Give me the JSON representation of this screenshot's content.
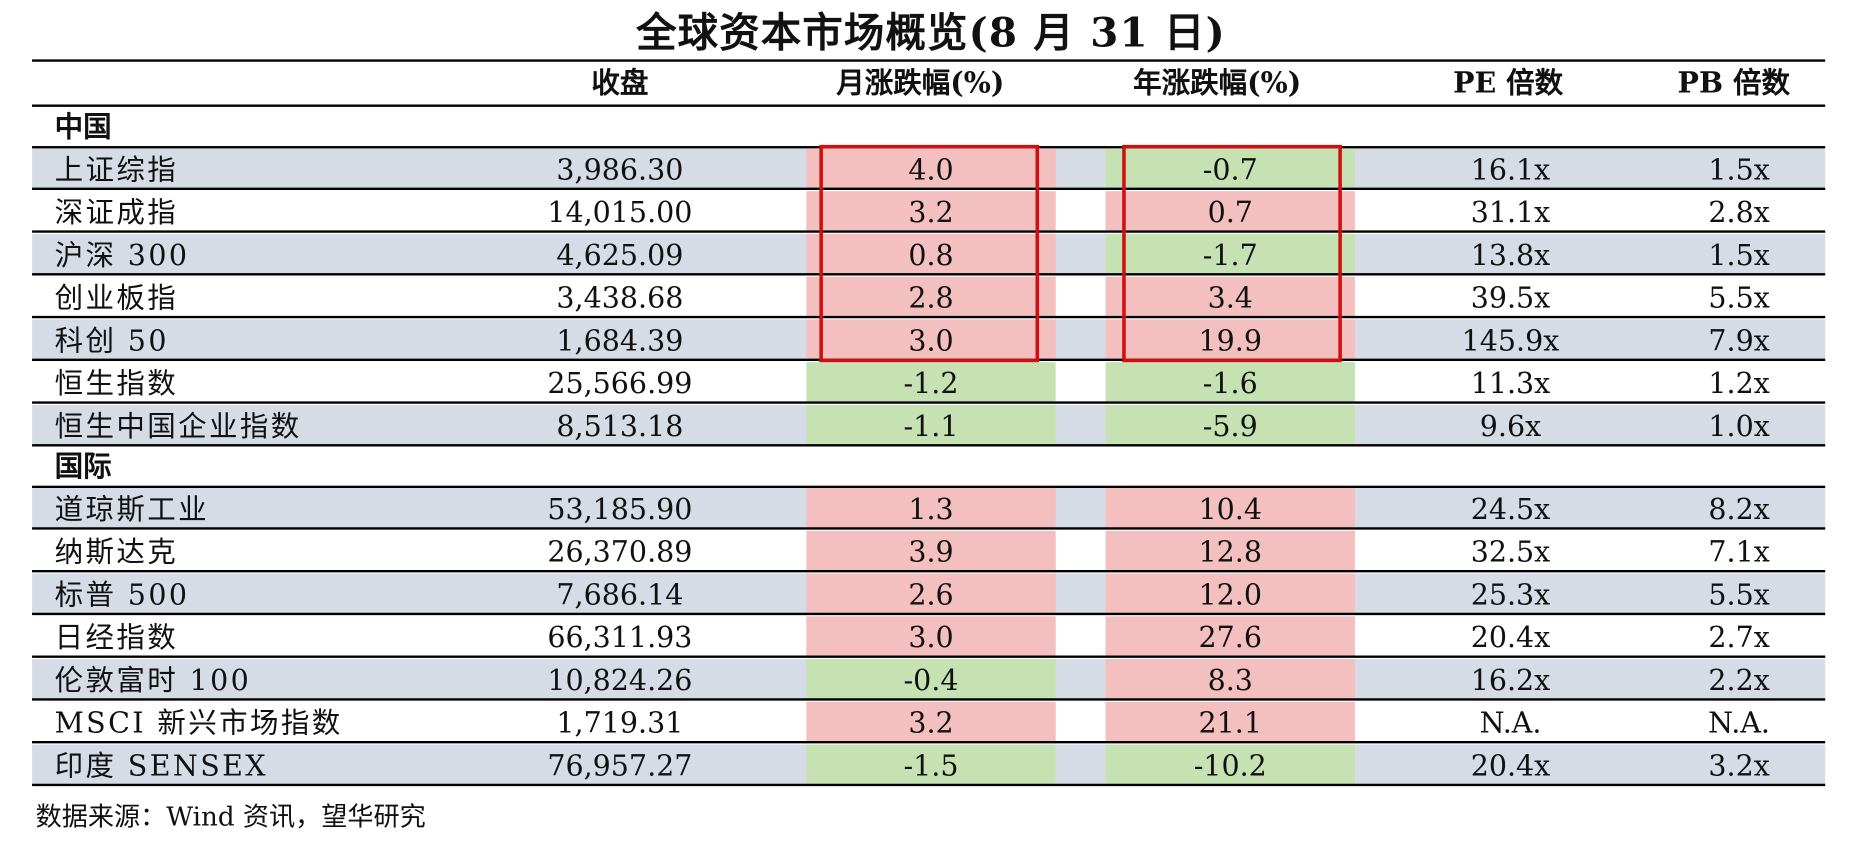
{
  "title": "全球资本市场概览(8 月 31 日)",
  "headers": {
    "close": "收盘",
    "month_change": "月涨跌幅(%)",
    "year_change": "年涨跌幅(%)",
    "pe": "PE 倍数",
    "pb": "PB 倍数"
  },
  "colors": {
    "positive_fill": "#f4bfbf",
    "negative_fill": "#c6e2b3",
    "row_shade": "#d6dce5",
    "highlight_box": "#d01010"
  },
  "sections": [
    {
      "label": "中国",
      "rows": [
        {
          "name": "上证综指",
          "close": "3,986.30",
          "month": "4.0",
          "year": "-0.7",
          "pe": "16.1x",
          "pb": "1.5x"
        },
        {
          "name": "深证成指",
          "close": "14,015.00",
          "month": "3.2",
          "year": "0.7",
          "pe": "31.1x",
          "pb": "2.8x"
        },
        {
          "name": "沪深 300",
          "close": "4,625.09",
          "month": "0.8",
          "year": "-1.7",
          "pe": "13.8x",
          "pb": "1.5x"
        },
        {
          "name": "创业板指",
          "close": "3,438.68",
          "month": "2.8",
          "year": "3.4",
          "pe": "39.5x",
          "pb": "5.5x"
        },
        {
          "name": "科创 50",
          "close": "1,684.39",
          "month": "3.0",
          "year": "19.9",
          "pe": "145.9x",
          "pb": "7.9x"
        },
        {
          "name": "恒生指数",
          "close": "25,566.99",
          "month": "-1.2",
          "year": "-1.6",
          "pe": "11.3x",
          "pb": "1.2x"
        },
        {
          "name": "恒生中国企业指数",
          "close": "8,513.18",
          "month": "-1.1",
          "year": "-5.9",
          "pe": "9.6x",
          "pb": "1.0x"
        }
      ]
    },
    {
      "label": "国际",
      "rows": [
        {
          "name": "道琼斯工业",
          "close": "53,185.90",
          "month": "1.3",
          "year": "10.4",
          "pe": "24.5x",
          "pb": "8.2x"
        },
        {
          "name": "纳斯达克",
          "close": "26,370.89",
          "month": "3.9",
          "year": "12.8",
          "pe": "32.5x",
          "pb": "7.1x"
        },
        {
          "name": "标普 500",
          "close": "7,686.14",
          "month": "2.6",
          "year": "12.0",
          "pe": "25.3x",
          "pb": "5.5x"
        },
        {
          "name": "日经指数",
          "close": "66,311.93",
          "month": "3.0",
          "year": "27.6",
          "pe": "20.4x",
          "pb": "2.7x"
        },
        {
          "name": "伦敦富时 100",
          "close": "10,824.26",
          "month": "-0.4",
          "year": "8.3",
          "pe": "16.2x",
          "pb": "2.2x"
        },
        {
          "name": "MSCI 新兴市场指数",
          "close": "1,719.31",
          "month": "3.2",
          "year": "21.1",
          "pe": "N.A.",
          "pb": "N.A."
        },
        {
          "name": "印度 SENSEX",
          "close": "76,957.27",
          "month": "-1.5",
          "year": "-10.2",
          "pe": "20.4x",
          "pb": "3.2x"
        }
      ]
    }
  ],
  "source": "数据来源：Wind 资讯，望华研究"
}
